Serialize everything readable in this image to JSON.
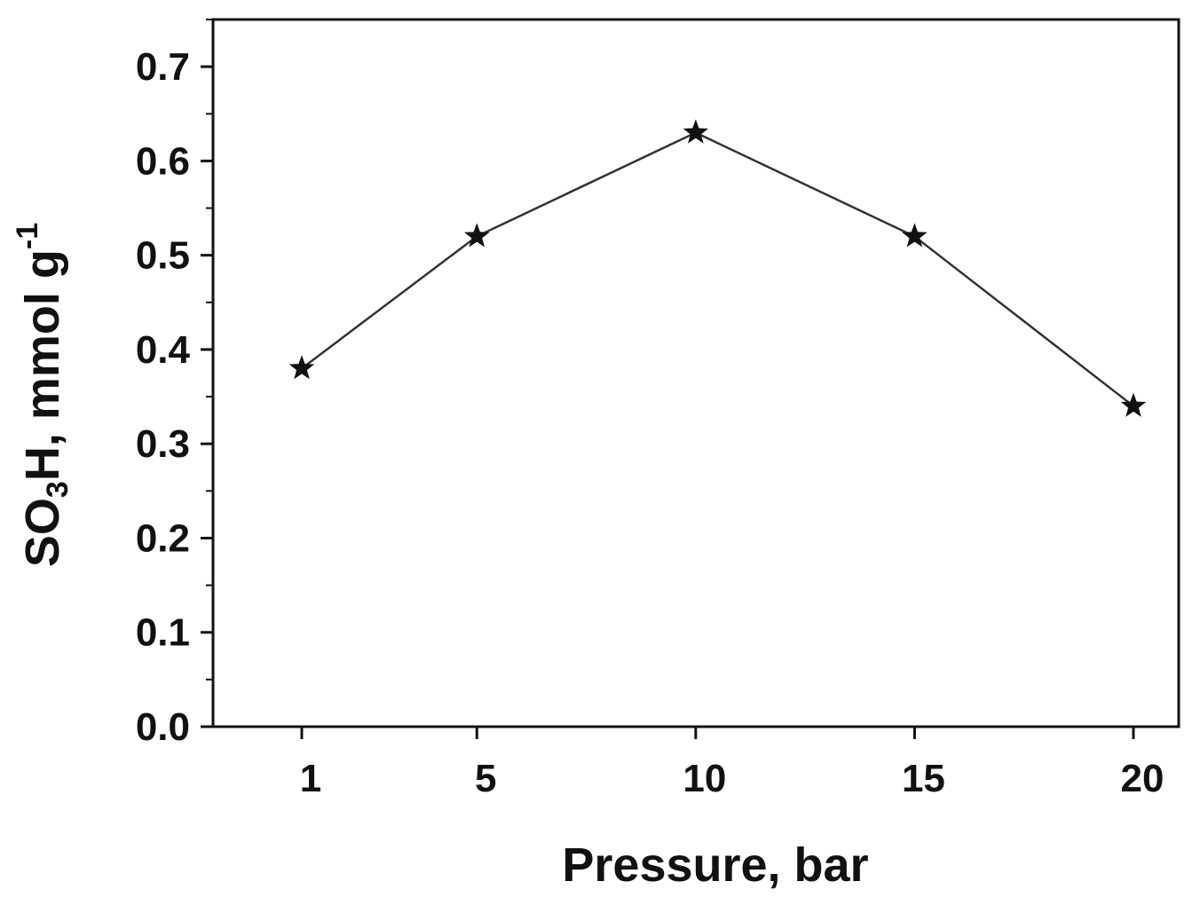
{
  "chart_data": {
    "type": "line",
    "x": [
      1,
      5,
      10,
      15,
      20
    ],
    "categories": [
      "1",
      "5",
      "10",
      "15",
      "20"
    ],
    "series": [
      {
        "values": [
          0.38,
          0.52,
          0.63,
          0.52,
          0.34
        ]
      }
    ],
    "title": "",
    "xlabel": "Pressure, bar",
    "ylabel": {
      "main": "SO",
      "sub": "3",
      "mid": "H, mmol  g",
      "sup": "-1"
    },
    "ylim": [
      0.0,
      0.75
    ],
    "yticks": [
      "0.0",
      "0.1",
      "0.2",
      "0.3",
      "0.4",
      "0.5",
      "0.6",
      "0.7"
    ],
    "ytick_values": [
      0.0,
      0.1,
      0.2,
      0.3,
      0.4,
      0.5,
      0.6,
      0.7
    ],
    "marker": "star",
    "grid": false,
    "colors": {
      "line": "#333333",
      "marker": "#111111",
      "axis": "#111111"
    }
  }
}
